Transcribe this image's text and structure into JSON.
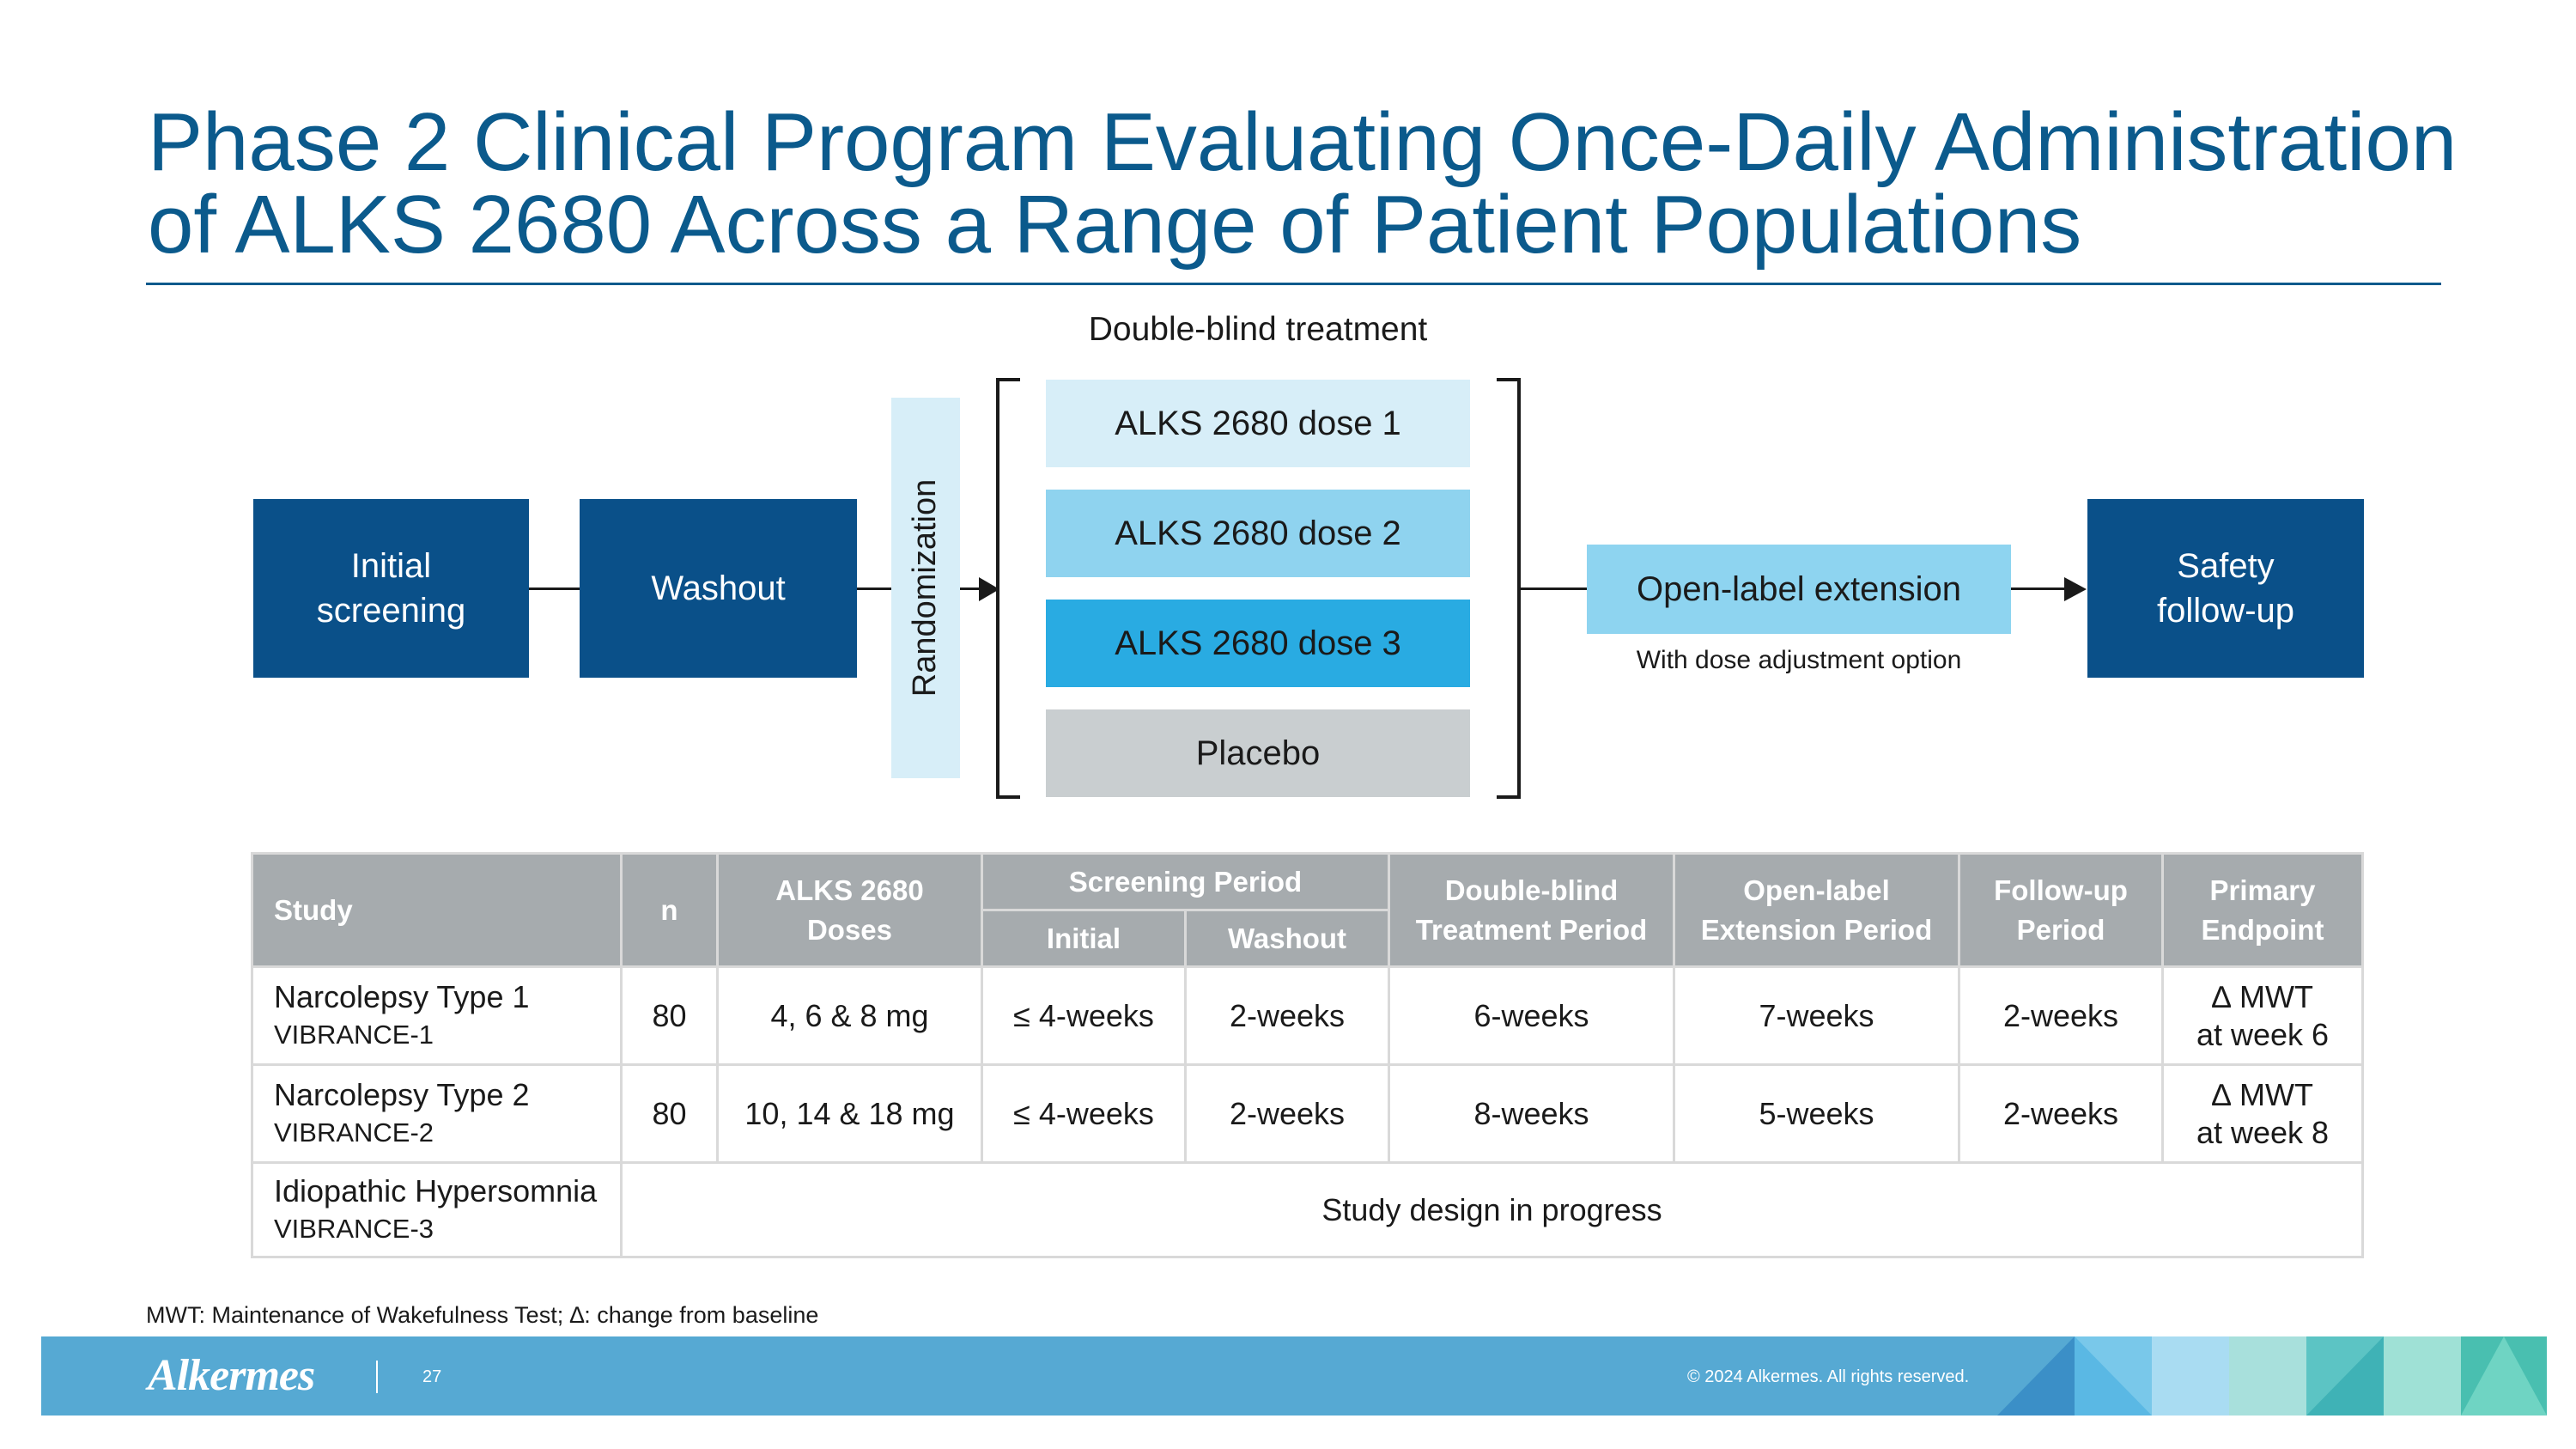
{
  "slide": {
    "title_line1": "Phase 2 Clinical Program Evaluating Once-Daily Administration",
    "title_line2": "of ALKS 2680 Across a Range of Patient Populations"
  },
  "flow": {
    "initial_line1": "Initial",
    "initial_line2": "screening",
    "washout": "Washout",
    "randomization": "Randomization",
    "dbt_label": "Double-blind treatment",
    "dose1": "ALKS 2680 dose 1",
    "dose2": "ALKS 2680 dose 2",
    "dose3": "ALKS 2680 dose 3",
    "placebo": "Placebo",
    "ole": "Open-label extension",
    "ole_note": "With dose adjustment option",
    "safety_line1": "Safety",
    "safety_line2": "follow-up"
  },
  "colors": {
    "dark_blue": "#0a5089",
    "dose1": "#d7eef8",
    "dose2": "#8fd3ef",
    "dose3": "#29abe2",
    "placebo": "#c9ced0",
    "light_blue": "#8ed4f0",
    "randomization": "#d7eef8",
    "header_gray": "#a6abae"
  },
  "table": {
    "headers": {
      "study": "Study",
      "n": "n",
      "doses_line1": "ALKS 2680",
      "doses_line2": "Doses",
      "screening": "Screening Period",
      "initial": "Initial",
      "washout": "Washout",
      "dbt_line1": "Double-blind",
      "dbt_line2": "Treatment Period",
      "ole_line1": "Open-label",
      "ole_line2": "Extension Period",
      "fu_line1": "Follow-up",
      "fu_line2": "Period",
      "pe_line1": "Primary",
      "pe_line2": "Endpoint"
    },
    "rows": [
      {
        "study": "Narcolepsy Type 1",
        "trial": "VIBRANCE-1",
        "n": "80",
        "doses": "4, 6 & 8 mg",
        "initial": "≤ 4-weeks",
        "washout": "2-weeks",
        "dbt": "6-weeks",
        "ole": "7-weeks",
        "followup": "2-weeks",
        "endpoint_line1": "∆ MWT",
        "endpoint_line2": "at week 6"
      },
      {
        "study": "Narcolepsy Type 2",
        "trial": "VIBRANCE-2",
        "n": "80",
        "doses": "10, 14 & 18 mg",
        "initial": "≤ 4-weeks",
        "washout": "2-weeks",
        "dbt": "8-weeks",
        "ole": "5-weeks",
        "followup": "2-weeks",
        "endpoint_line1": "∆ MWT",
        "endpoint_line2": "at week 8"
      },
      {
        "study": "Idiopathic Hypersomnia",
        "trial": "VIBRANCE-3",
        "status": "Study design in progress"
      }
    ]
  },
  "footnote": "MWT: Maintenance of Wakefulness Test; ∆: change from baseline",
  "footer": {
    "logo": "Alkermes",
    "page_number": "27",
    "copyright": "© 2024 Alkermes. All rights reserved."
  }
}
